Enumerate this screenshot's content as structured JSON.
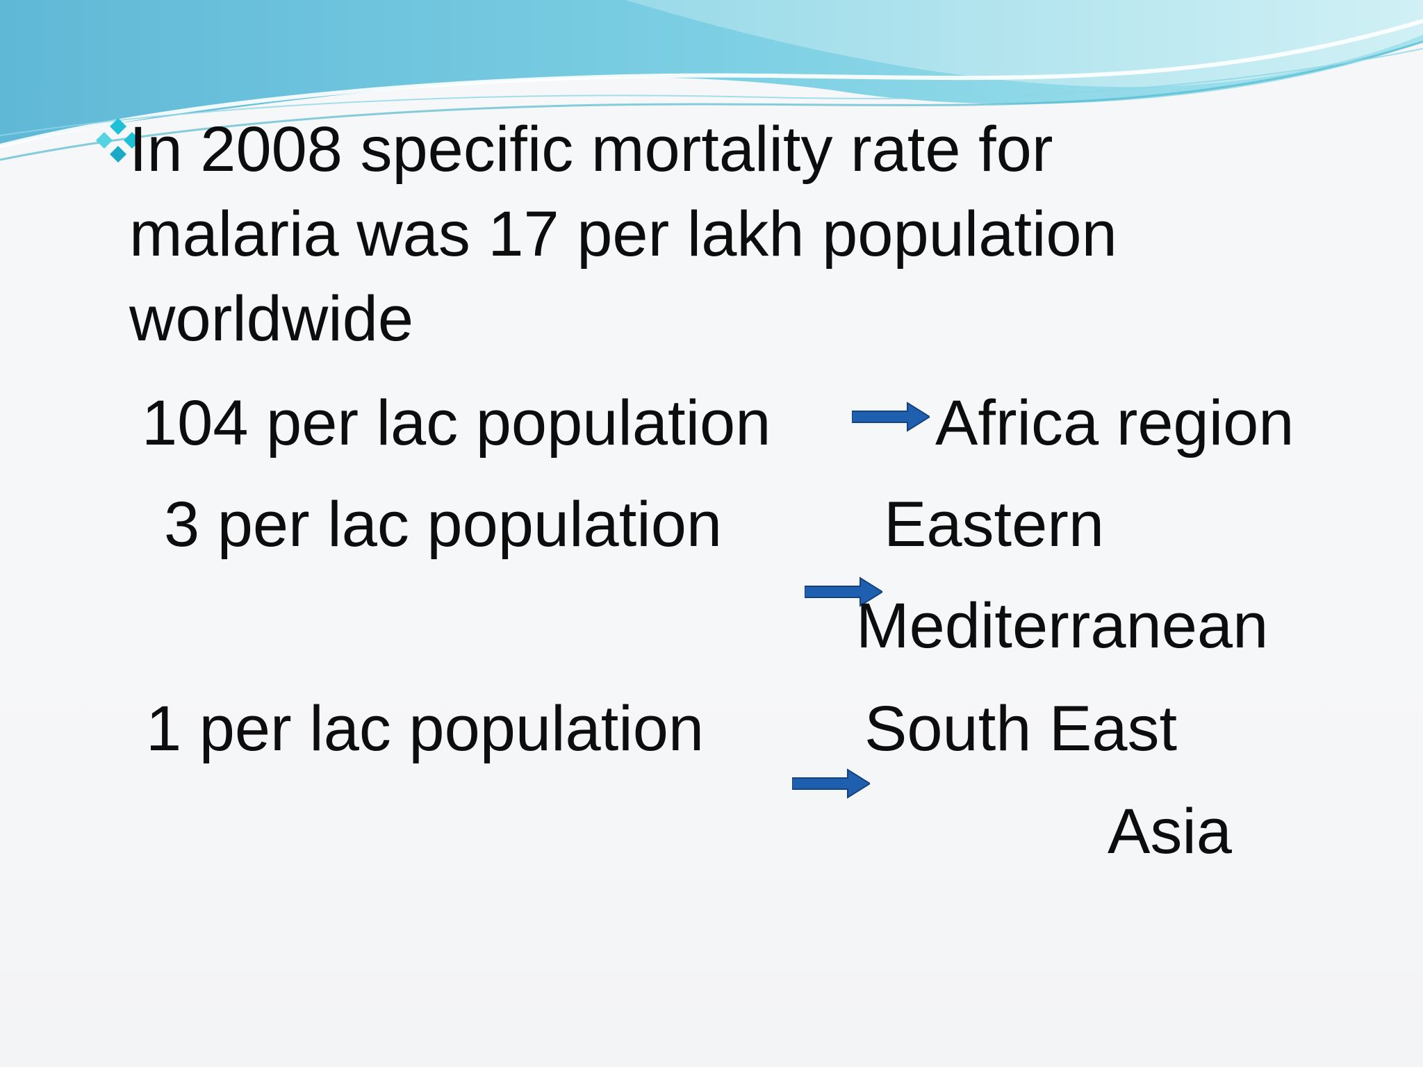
{
  "slide": {
    "bullet_text": "In 2008 specific mortality rate for\nmalaria was 17 per lakh population\nworldwide",
    "rows": [
      {
        "rate": "104 per lac population",
        "region": "Africa region"
      },
      {
        "rate": "3 per lac population",
        "region_line1": "Eastern",
        "region_line2": "Mediterranean"
      },
      {
        "rate": "1 per lac population",
        "region_line1": "South East",
        "region_line2": "Asia"
      }
    ]
  },
  "icons": {
    "bullet": "four-diamond-bullet-icon",
    "arrow": "right-arrow-icon"
  },
  "colors": {
    "bullet": "#1ec0d6",
    "arrow": "#1f5fb0",
    "banner_dark": "#5fbcd8",
    "banner_light": "#a8e4ee"
  }
}
